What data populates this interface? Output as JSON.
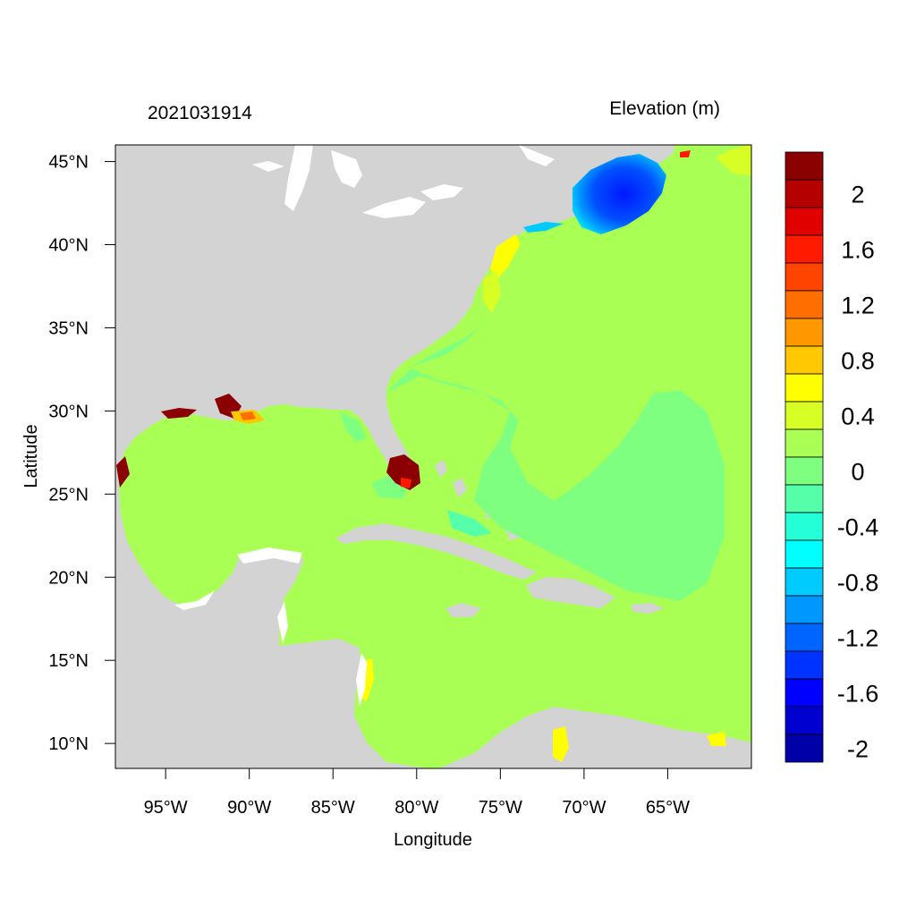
{
  "figure": {
    "timestamp": "2021031914",
    "legend_title": "Elevation (m)",
    "x_axis_label": "Longitude",
    "y_axis_label": "Latitude",
    "colors": {
      "land": "#d3d3d3",
      "ocean_base": "#aaff55",
      "frame": "#000000"
    }
  },
  "map": {
    "lon_range": [
      -98,
      -60
    ],
    "lat_range": [
      8.5,
      46
    ],
    "x_ticks": [
      {
        "lon": -95,
        "label": "95°W"
      },
      {
        "lon": -90,
        "label": "90°W"
      },
      {
        "lon": -85,
        "label": "85°W"
      },
      {
        "lon": -80,
        "label": "80°W"
      },
      {
        "lon": -75,
        "label": "75°W"
      },
      {
        "lon": -70,
        "label": "70°W"
      },
      {
        "lon": -65,
        "label": "65°W"
      }
    ],
    "y_ticks": [
      {
        "lat": 45,
        "label": "45°N"
      },
      {
        "lat": 40,
        "label": "40°N"
      },
      {
        "lat": 35,
        "label": "35°N"
      },
      {
        "lat": 30,
        "label": "30°N"
      },
      {
        "lat": 25,
        "label": "25°N"
      },
      {
        "lat": 20,
        "label": "20°N"
      },
      {
        "lat": 15,
        "label": "15°N"
      },
      {
        "lat": 10,
        "label": "10°N"
      }
    ]
  },
  "colorbar": {
    "colors": [
      "#8b0000",
      "#b50000",
      "#e00000",
      "#ff1a00",
      "#ff4400",
      "#ff6e00",
      "#ff9800",
      "#ffc800",
      "#ffff00",
      "#d7ff25",
      "#aaff55",
      "#7fff80",
      "#55ffaa",
      "#25ffd7",
      "#00ffff",
      "#00cbff",
      "#0098ff",
      "#0065ff",
      "#0033ff",
      "#0000ff",
      "#0000d0",
      "#0000a8"
    ],
    "tick_labels": [
      {
        "value": 2,
        "label": "2"
      },
      {
        "value": 1.6,
        "label": "1.6"
      },
      {
        "value": 1.2,
        "label": "1.2"
      },
      {
        "value": 0.8,
        "label": "0.8"
      },
      {
        "value": 0.4,
        "label": "0.4"
      },
      {
        "value": 0,
        "label": "0"
      },
      {
        "value": -0.4,
        "label": "-0.4"
      },
      {
        "value": -0.8,
        "label": "-0.8"
      },
      {
        "value": -1.2,
        "label": "-1.2"
      },
      {
        "value": -1.6,
        "label": "-1.6"
      },
      {
        "value": -2,
        "label": "-2"
      }
    ]
  }
}
